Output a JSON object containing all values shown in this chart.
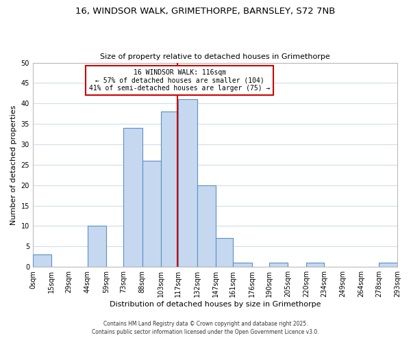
{
  "title": "16, WINDSOR WALK, GRIMETHORPE, BARNSLEY, S72 7NB",
  "subtitle": "Size of property relative to detached houses in Grimethorpe",
  "xlabel": "Distribution of detached houses by size in Grimethorpe",
  "ylabel": "Number of detached properties",
  "bin_edges": [
    0,
    15,
    29,
    44,
    59,
    73,
    88,
    103,
    117,
    132,
    147,
    161,
    176,
    190,
    205,
    220,
    234,
    249,
    264,
    278,
    293
  ],
  "bin_labels": [
    "0sqm",
    "15sqm",
    "29sqm",
    "44sqm",
    "59sqm",
    "73sqm",
    "88sqm",
    "103sqm",
    "117sqm",
    "132sqm",
    "147sqm",
    "161sqm",
    "176sqm",
    "190sqm",
    "205sqm",
    "220sqm",
    "234sqm",
    "249sqm",
    "264sqm",
    "278sqm",
    "293sqm"
  ],
  "counts": [
    3,
    0,
    0,
    10,
    0,
    34,
    26,
    38,
    41,
    20,
    7,
    1,
    0,
    1,
    0,
    1,
    0,
    0,
    0,
    1
  ],
  "bar_color": "#c5d8f0",
  "bar_edge_color": "#5a8fc3",
  "property_line_x": 116,
  "property_line_color": "#cc0000",
  "annotation_title": "16 WINDSOR WALK: 116sqm",
  "annotation_line1": "← 57% of detached houses are smaller (104)",
  "annotation_line2": "41% of semi-detached houses are larger (75) →",
  "annotation_box_color": "#ffffff",
  "annotation_box_edge_color": "#cc0000",
  "ylim": [
    0,
    50
  ],
  "yticks": [
    0,
    5,
    10,
    15,
    20,
    25,
    30,
    35,
    40,
    45,
    50
  ],
  "footer1": "Contains HM Land Registry data © Crown copyright and database right 2025.",
  "footer2": "Contains public sector information licensed under the Open Government Licence v3.0.",
  "bg_color": "#ffffff",
  "grid_color": "#d0dcec"
}
